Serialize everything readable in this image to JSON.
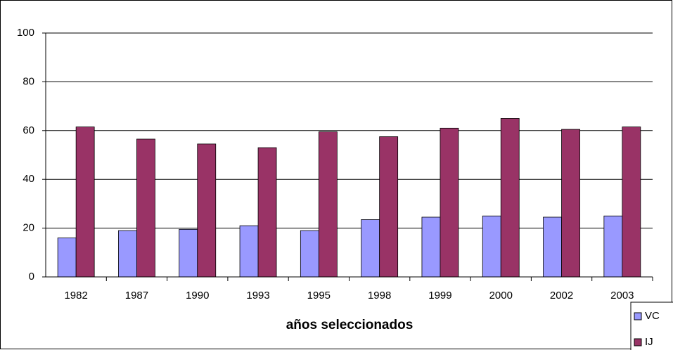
{
  "chart_data": {
    "type": "bar",
    "x_label": "años seleccionados",
    "categories": [
      "1982",
      "1987",
      "1990",
      "1993",
      "1995",
      "1998",
      "1999",
      "2000",
      "2002",
      "2003"
    ],
    "series": [
      {
        "name": "VC",
        "color": "#9999ff",
        "values": [
          16,
          19,
          19.5,
          21,
          19,
          23.5,
          24.5,
          25,
          24.5,
          25
        ]
      },
      {
        "name": "IJ",
        "color": "#993366",
        "values": [
          61.5,
          56.5,
          54.5,
          53,
          59.5,
          57.5,
          61,
          65,
          60.5,
          61.5
        ]
      }
    ],
    "ylim": [
      0,
      100
    ],
    "yticks": [
      0,
      20,
      40,
      60,
      80,
      100
    ],
    "grid": true
  }
}
